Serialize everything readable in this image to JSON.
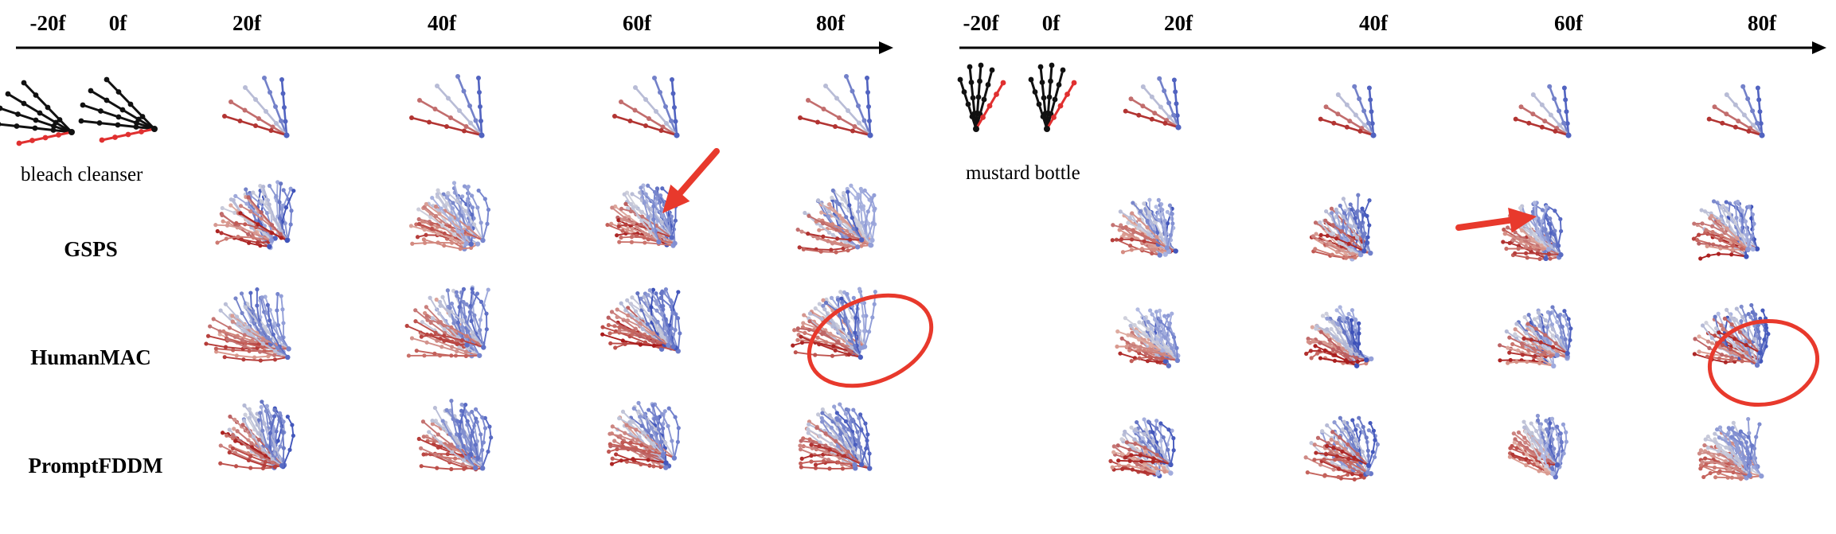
{
  "panels": [
    {
      "object": "bleach cleanser",
      "ticks": [
        "-20f",
        "0f",
        "20f",
        "40f",
        "60f",
        "80f"
      ]
    },
    {
      "object": "mustard bottle",
      "ticks": [
        "-20f",
        "0f",
        "20f",
        "40f",
        "60f",
        "80f"
      ]
    }
  ],
  "methods": [
    "GSPS",
    "HumanMAC",
    "PromptFDDM"
  ],
  "colors": {
    "past_hand": "#111111",
    "past_highlight": "#e03030",
    "future_blue": "#3a4fb8",
    "future_red": "#a81a1a",
    "annotation": "#e8392c"
  }
}
